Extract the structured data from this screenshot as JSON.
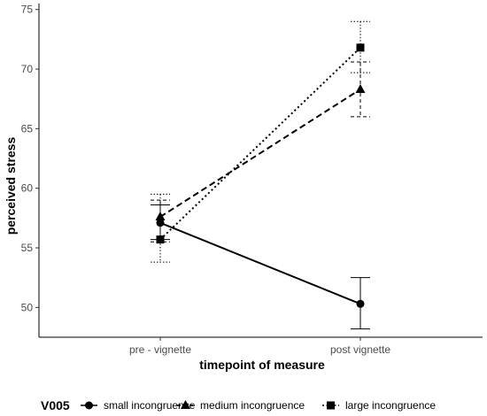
{
  "chart_data": {
    "type": "line",
    "xlabel": "timepoint of measure",
    "ylabel": "perceived stress",
    "categories": [
      "pre - vignette",
      "post vignette"
    ],
    "ylim": [
      47.5,
      75.5
    ],
    "yticks": [
      50,
      55,
      60,
      65,
      70,
      75
    ],
    "grid": false,
    "legend": {
      "title": "V005",
      "position": "bottom"
    },
    "series": [
      {
        "name": "small incongruence",
        "marker": "circle",
        "linestyle": "solid",
        "values": [
          57.1,
          50.3
        ],
        "error_low": [
          55.7,
          48.2
        ],
        "error_high": [
          58.6,
          52.5
        ]
      },
      {
        "name": "medium incongruence",
        "marker": "triangle",
        "linestyle": "dashed",
        "values": [
          57.6,
          68.3
        ],
        "error_low": [
          55.5,
          66.0
        ],
        "error_high": [
          59.0,
          70.6
        ]
      },
      {
        "name": "large incongruence",
        "marker": "square",
        "linestyle": "dotted",
        "values": [
          55.7,
          71.8
        ],
        "error_low": [
          53.8,
          69.7
        ],
        "error_high": [
          59.5,
          74.0
        ]
      }
    ]
  }
}
